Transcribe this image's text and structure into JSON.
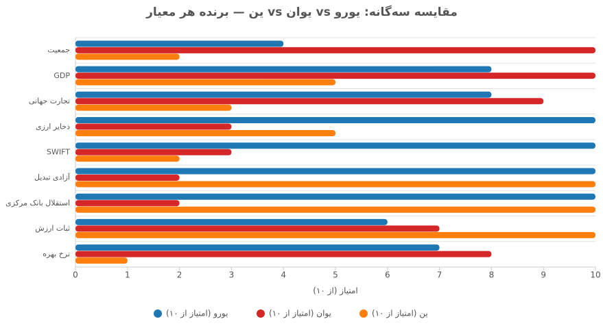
{
  "chart_data": {
    "type": "bar",
    "orientation": "horizontal",
    "title": "ین — برنده هر معیار vs یوان vs مقایسه سه‌گانه: یورو",
    "x_label": "امتیاز (از ۱۰)",
    "categories": [
      "جمعیت",
      "GDP",
      "تجارت جهانی",
      "ذخایر ارزی",
      "SWIFT",
      "آزادی تبدیل",
      "استقلال بانک مرکزی",
      "ثبات ارزش",
      "نرخ بهره"
    ],
    "series": [
      {
        "name": "یورو (امتیاز از ۱۰)",
        "color": "#1f77b4",
        "values": [
          4,
          8,
          8,
          10,
          10,
          10,
          10,
          6,
          7
        ]
      },
      {
        "name": "یوان (امتیاز از ۱۰)",
        "color": "#d62728",
        "values": [
          10,
          10,
          9,
          3,
          3,
          2,
          2,
          7,
          8
        ]
      },
      {
        "name": "ین (امتیاز از ۱۰)",
        "color": "#ff7f0e",
        "values": [
          2,
          5,
          3,
          5,
          2,
          10,
          10,
          10,
          1
        ]
      }
    ],
    "xlim": [
      0,
      10
    ],
    "xticks": [
      0,
      1,
      2,
      3,
      4,
      5,
      6,
      7,
      8,
      9,
      10
    ]
  }
}
